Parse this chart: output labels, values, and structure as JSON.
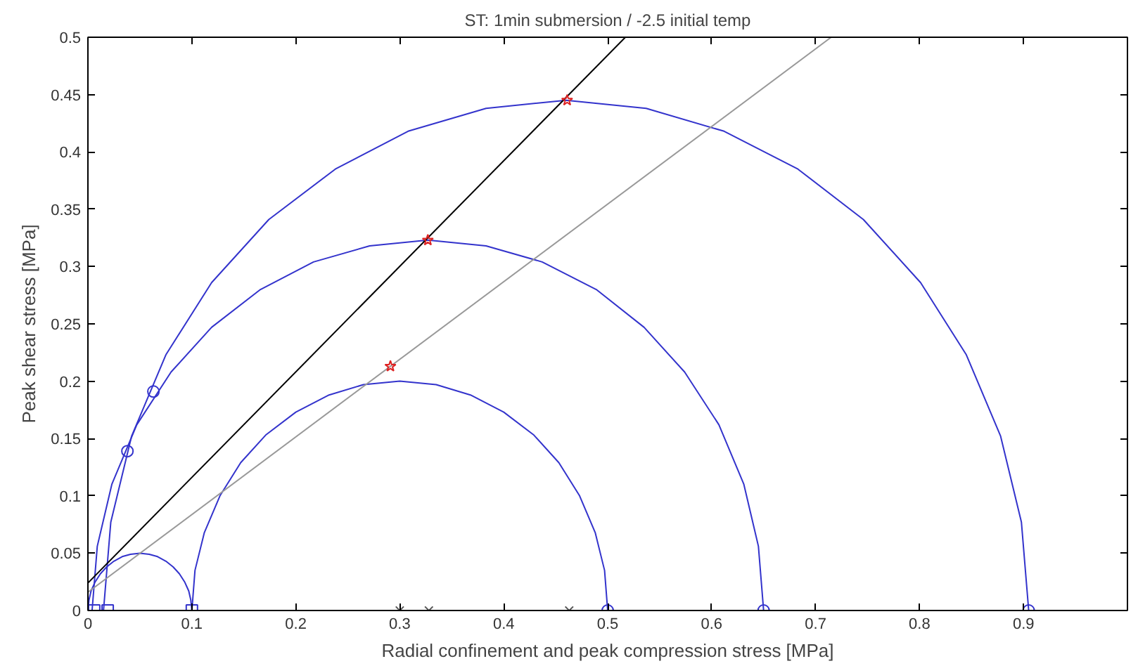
{
  "chart_data": {
    "type": "line",
    "title": "ST: 1min submersion / -2.5 initial temp",
    "xlabel": "Radial confinement and peak compression stress [MPa]",
    "ylabel": "Peak shear stress [MPa]",
    "xlim": [
      0,
      1
    ],
    "ylim": [
      0,
      0.5
    ],
    "xticks": [
      0,
      0.1,
      0.2,
      0.3,
      0.4,
      0.5,
      0.6,
      0.7,
      0.8,
      0.9
    ],
    "yticks": [
      0,
      0.05,
      0.1,
      0.15,
      0.2,
      0.25,
      0.3,
      0.35,
      0.4,
      0.45,
      0.5
    ],
    "grid": false,
    "line_style": "solid",
    "series": [
      {
        "type": "line",
        "color": "#3333cc",
        "marker": "none",
        "x": [
          0,
          0.001,
          0.003,
          0.007,
          0.012,
          0.018,
          0.025,
          0.033,
          0.041,
          0.05,
          0.059,
          0.067,
          0.075,
          0.082,
          0.088,
          0.093,
          0.097,
          0.099,
          0.1
        ],
        "values": [
          0,
          0.009,
          0.017,
          0.025,
          0.032,
          0.038,
          0.043,
          0.047,
          0.049,
          0.05,
          0.049,
          0.047,
          0.043,
          0.038,
          0.032,
          0.025,
          0.017,
          0.009,
          0
        ]
      },
      {
        "type": "line",
        "color": "#3333cc",
        "marker": "none",
        "x": [
          0.1,
          0.103,
          0.112,
          0.127,
          0.147,
          0.171,
          0.2,
          0.232,
          0.265,
          0.3,
          0.335,
          0.368,
          0.4,
          0.429,
          0.453,
          0.473,
          0.488,
          0.497,
          0.5
        ],
        "values": [
          0,
          0.035,
          0.068,
          0.1,
          0.129,
          0.153,
          0.173,
          0.188,
          0.197,
          0.2,
          0.197,
          0.188,
          0.173,
          0.153,
          0.129,
          0.1,
          0.068,
          0.035,
          0
        ]
      },
      {
        "type": "line",
        "color": "#3333cc",
        "marker": "none",
        "x": [
          0.004,
          0.009,
          0.023,
          0.047,
          0.08,
          0.119,
          0.166,
          0.217,
          0.271,
          0.327,
          0.383,
          0.437,
          0.489,
          0.535,
          0.574,
          0.607,
          0.631,
          0.645,
          0.65
        ],
        "values": [
          0,
          0.056,
          0.11,
          0.162,
          0.208,
          0.247,
          0.28,
          0.304,
          0.318,
          0.323,
          0.318,
          0.304,
          0.28,
          0.247,
          0.208,
          0.162,
          0.11,
          0.056,
          0
        ]
      },
      {
        "type": "line",
        "color": "#3333cc",
        "marker": "none",
        "x": [
          0.015,
          0.022,
          0.042,
          0.075,
          0.119,
          0.174,
          0.238,
          0.308,
          0.383,
          0.46,
          0.537,
          0.612,
          0.683,
          0.746,
          0.801,
          0.845,
          0.878,
          0.898,
          0.905
        ],
        "values": [
          0,
          0.077,
          0.152,
          0.223,
          0.286,
          0.341,
          0.385,
          0.418,
          0.438,
          0.445,
          0.438,
          0.418,
          0.385,
          0.341,
          0.286,
          0.223,
          0.152,
          0.077,
          0
        ]
      },
      {
        "type": "line",
        "color": "#000000",
        "marker": "none",
        "x": [
          0,
          0.517
        ],
        "values": [
          0.024,
          0.5
        ]
      },
      {
        "type": "line",
        "color": "#999999",
        "marker": "none",
        "x": [
          0,
          0.715
        ],
        "values": [
          0.016,
          0.5
        ]
      },
      {
        "type": "scatter",
        "color": "#3333cc",
        "marker": "square",
        "x": [
          0.006,
          0.019,
          0.1
        ],
        "values": [
          0,
          0,
          0
        ]
      },
      {
        "type": "scatter",
        "color": "#3333cc",
        "marker": "circle",
        "x": [
          0.5,
          0.65,
          0.905,
          0.038,
          0.063
        ],
        "values": [
          0,
          0,
          0,
          0.139,
          0.191
        ]
      },
      {
        "type": "scatter",
        "color": "#dd2222",
        "marker": "star",
        "x": [
          0.291,
          0.327,
          0.461
        ],
        "values": [
          0.213,
          0.323,
          0.445
        ]
      },
      {
        "type": "scatter",
        "color": "#555555",
        "marker": "cross",
        "x": [
          0.3,
          0.328,
          0.463
        ],
        "values": [
          0,
          0,
          0
        ]
      }
    ]
  }
}
